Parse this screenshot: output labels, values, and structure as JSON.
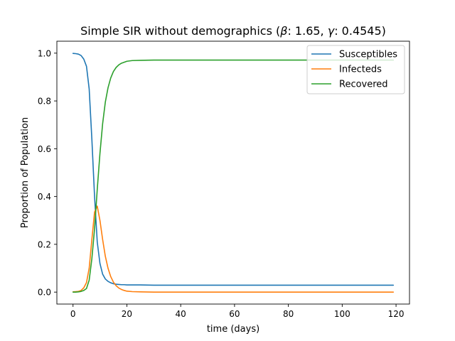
{
  "chart_data": {
    "type": "line",
    "title": "Simple SIR without demographics (β: 1.65, γ: 0.4545)",
    "title_parts": {
      "before_beta": "Simple SIR without demographics (",
      "beta_symbol": "β",
      "beta_value": ": 1.65, ",
      "gamma_symbol": "γ",
      "gamma_value": ": 0.4545)"
    },
    "xlabel": "time (days)",
    "ylabel": "Proportion of Population",
    "xlim": [
      -6,
      125
    ],
    "ylim": [
      -0.05,
      1.05
    ],
    "xticks": [
      0,
      20,
      40,
      60,
      80,
      100,
      120
    ],
    "xtick_labels": [
      "0",
      "20",
      "40",
      "60",
      "80",
      "100",
      "120"
    ],
    "yticks": [
      0.0,
      0.2,
      0.4,
      0.6,
      0.8,
      1.0
    ],
    "ytick_labels": [
      "0.0",
      "0.2",
      "0.4",
      "0.6",
      "0.8",
      "1.0"
    ],
    "grid": false,
    "legend_position": "top-right",
    "x": [
      0,
      1,
      2,
      3,
      4,
      5,
      6,
      7,
      8,
      9,
      10,
      11,
      12,
      13,
      14,
      15,
      16,
      17,
      18,
      19,
      20,
      22,
      25,
      30,
      40,
      60,
      80,
      100,
      119
    ],
    "series": [
      {
        "name": "Susceptibles",
        "color": "#1f77b4",
        "values": [
          0.999,
          0.998,
          0.996,
          0.99,
          0.975,
          0.945,
          0.85,
          0.64,
          0.4,
          0.21,
          0.12,
          0.075,
          0.055,
          0.045,
          0.039,
          0.035,
          0.033,
          0.032,
          0.031,
          0.031,
          0.03,
          0.03,
          0.03,
          0.029,
          0.029,
          0.029,
          0.029,
          0.029,
          0.029
        ]
      },
      {
        "name": "Infecteds",
        "color": "#ff7f0e",
        "values": [
          0.001,
          0.002,
          0.003,
          0.007,
          0.018,
          0.04,
          0.1,
          0.22,
          0.335,
          0.36,
          0.3,
          0.22,
          0.15,
          0.1,
          0.065,
          0.042,
          0.027,
          0.017,
          0.011,
          0.007,
          0.004,
          0.002,
          0.001,
          0.0,
          0.0,
          0.0,
          0.0,
          0.0,
          0.0
        ]
      },
      {
        "name": "Recovered",
        "color": "#2ca02c",
        "values": [
          0.0,
          0.0,
          0.001,
          0.003,
          0.007,
          0.015,
          0.05,
          0.14,
          0.265,
          0.43,
          0.58,
          0.705,
          0.795,
          0.855,
          0.896,
          0.923,
          0.94,
          0.951,
          0.958,
          0.962,
          0.966,
          0.969,
          0.97,
          0.971,
          0.971,
          0.971,
          0.971,
          0.971,
          0.971
        ]
      }
    ]
  }
}
